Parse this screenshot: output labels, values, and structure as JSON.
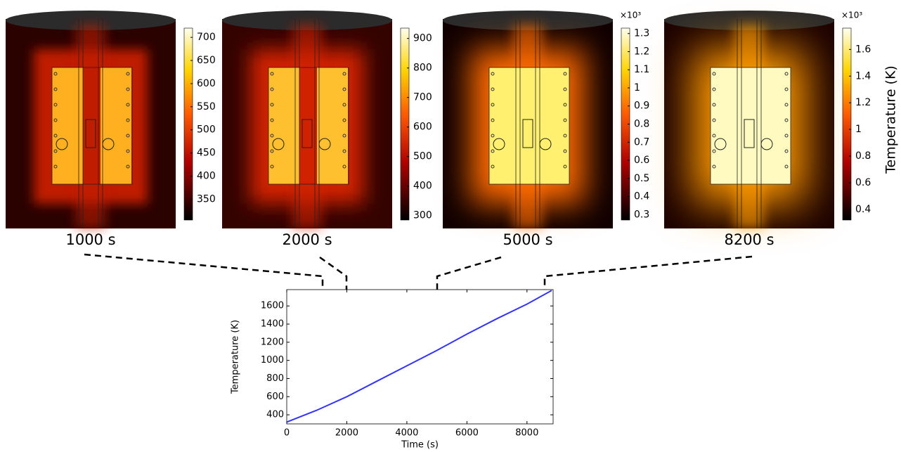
{
  "chart_data": [
    {
      "type": "heatmap",
      "label": "1000 s",
      "clim": [
        305,
        720
      ],
      "cticks": [
        350,
        400,
        450,
        500,
        550,
        600,
        650,
        700
      ]
    },
    {
      "type": "heatmap",
      "label": "2000 s",
      "clim": [
        285,
        935
      ],
      "cticks": [
        300,
        400,
        500,
        600,
        700,
        800,
        900
      ]
    },
    {
      "type": "heatmap",
      "label": "5000 s",
      "clim": [
        0.27,
        1.33
      ],
      "cticks": [
        0.3,
        0.4,
        0.5,
        0.6,
        0.7,
        0.8,
        0.9,
        1,
        1.1,
        1.2,
        1.3
      ],
      "scale_label": "×10³"
    },
    {
      "type": "heatmap",
      "label": "8200 s",
      "clim": [
        0.32,
        1.76
      ],
      "cticks": [
        0.4,
        0.6,
        0.8,
        1,
        1.2,
        1.4,
        1.6
      ],
      "scale_label": "×10³",
      "colorbar_title": "Temperature (K)"
    },
    {
      "type": "line",
      "xlabel": "Time (s)",
      "ylabel": "Temperature (K)",
      "x": [
        0,
        1000,
        2000,
        3000,
        4000,
        5000,
        6000,
        7000,
        8000,
        8820
      ],
      "values": [
        320,
        450,
        600,
        770,
        940,
        1110,
        1290,
        1460,
        1620,
        1770
      ],
      "color": "#3333ff",
      "xlim": [
        0,
        8870
      ],
      "ylim": [
        300,
        1780
      ],
      "xticks": [
        0,
        2000,
        4000,
        6000,
        8000
      ],
      "yticks": [
        400,
        600,
        800,
        1000,
        1200,
        1400,
        1600
      ]
    }
  ]
}
